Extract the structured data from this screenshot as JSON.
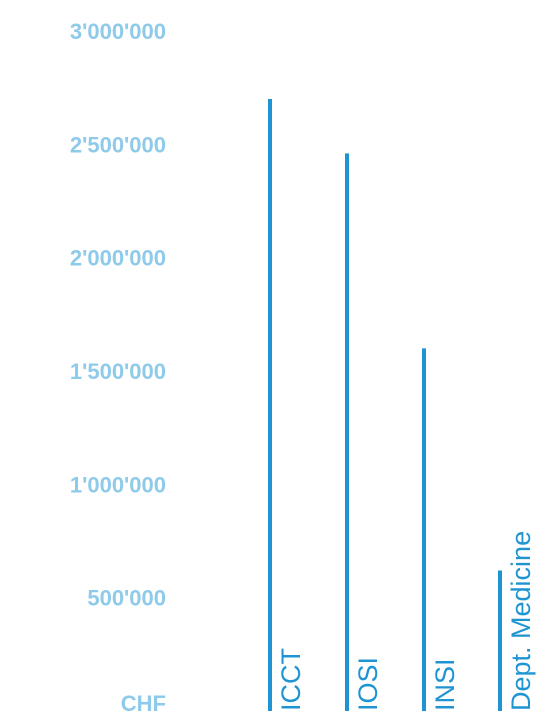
{
  "colors": {
    "tick_label": "#8ecaea",
    "bar": "#1f94d2"
  },
  "chart_data": {
    "type": "bar",
    "orientation": "vertical",
    "bar_style": "thin-line",
    "ylabel": "",
    "unit_label": "CHF",
    "ylim": [
      0,
      3000000
    ],
    "y_ticks": [
      {
        "value": 500000,
        "label": "500'000"
      },
      {
        "value": 1000000,
        "label": "1'000'000"
      },
      {
        "value": 1500000,
        "label": "1'500'000"
      },
      {
        "value": 2000000,
        "label": "2'000'000"
      },
      {
        "value": 2500000,
        "label": "2'500'000"
      },
      {
        "value": 3000000,
        "label": "3'000'000"
      }
    ],
    "categories": [
      "ICCT",
      "IOSI",
      "INSI",
      "Dept. Medicine"
    ],
    "values": [
      2700000,
      2460000,
      1600000,
      620000
    ],
    "grid": false,
    "legend": "none",
    "category_label_orientation": "vertical"
  }
}
